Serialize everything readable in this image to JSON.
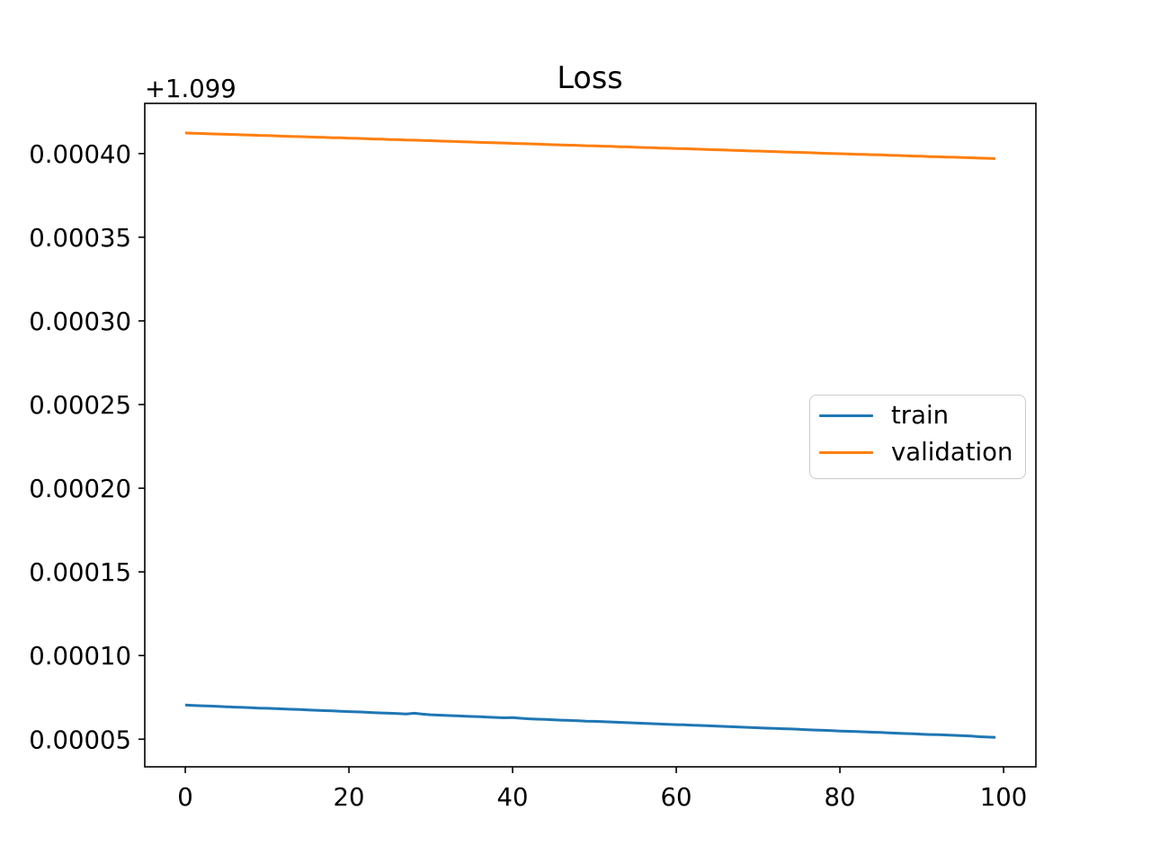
{
  "figure": {
    "background_color": "#ffffff",
    "kind": "matplotlib line figure"
  },
  "chart_data": {
    "type": "line",
    "title": "Loss",
    "xlabel": "",
    "ylabel": "",
    "y_axis_offset_label": "+1.099",
    "note": "y tick values are relative to the +1.099 axis offset shown above the y-axis",
    "grid": false,
    "xlim": [
      -4.95,
      103.95
    ],
    "ylim": [
      3.35e-05,
      0.00043
    ],
    "x_ticks": {
      "values": [
        0,
        20,
        40,
        60,
        80,
        100
      ],
      "labels": [
        "0",
        "20",
        "40",
        "60",
        "80",
        "100"
      ]
    },
    "y_ticks": {
      "values": [
        5e-05,
        0.0001,
        0.00015,
        0.0002,
        0.00025,
        0.0003,
        0.00035,
        0.0004
      ],
      "labels": [
        "0.00005",
        "0.00010",
        "0.00015",
        "0.00020",
        "0.00025",
        "0.00030",
        "0.00035",
        "0.00040"
      ]
    },
    "legend": {
      "position": "center-right",
      "entries": [
        "train",
        "validation"
      ]
    },
    "x": [
      0,
      1,
      2,
      3,
      4,
      5,
      6,
      7,
      8,
      9,
      10,
      11,
      12,
      13,
      14,
      15,
      16,
      17,
      18,
      19,
      20,
      21,
      22,
      23,
      24,
      25,
      26,
      27,
      28,
      29,
      30,
      31,
      32,
      33,
      34,
      35,
      36,
      37,
      38,
      39,
      40,
      41,
      42,
      43,
      44,
      45,
      46,
      47,
      48,
      49,
      50,
      51,
      52,
      53,
      54,
      55,
      56,
      57,
      58,
      59,
      60,
      61,
      62,
      63,
      64,
      65,
      66,
      67,
      68,
      69,
      70,
      71,
      72,
      73,
      74,
      75,
      76,
      77,
      78,
      79,
      80,
      81,
      82,
      83,
      84,
      85,
      86,
      87,
      88,
      89,
      90,
      91,
      92,
      93,
      94,
      95,
      96,
      97,
      98,
      99
    ],
    "series": [
      {
        "name": "train",
        "color": "#1f77b4",
        "values": [
          7.04e-05,
          7.02e-05,
          7e-05,
          6.98e-05,
          6.96e-05,
          6.94e-05,
          6.92e-05,
          6.9e-05,
          6.88e-05,
          6.86e-05,
          6.85e-05,
          6.83e-05,
          6.81e-05,
          6.79e-05,
          6.77e-05,
          6.75e-05,
          6.73e-05,
          6.71e-05,
          6.69e-05,
          6.67e-05,
          6.65e-05,
          6.63e-05,
          6.61e-05,
          6.59e-05,
          6.57e-05,
          6.55e-05,
          6.53e-05,
          6.51e-05,
          6.55e-05,
          6.5e-05,
          6.46e-05,
          6.44e-05,
          6.42e-05,
          6.4e-05,
          6.38e-05,
          6.36e-05,
          6.34e-05,
          6.32e-05,
          6.3e-05,
          6.28e-05,
          6.29e-05,
          6.25e-05,
          6.22e-05,
          6.2e-05,
          6.18e-05,
          6.16e-05,
          6.14e-05,
          6.12e-05,
          6.1e-05,
          6.08e-05,
          6.07e-05,
          6.05e-05,
          6.03e-05,
          6.01e-05,
          5.99e-05,
          5.97e-05,
          5.95e-05,
          5.93e-05,
          5.91e-05,
          5.89e-05,
          5.87e-05,
          5.86e-05,
          5.84e-05,
          5.82e-05,
          5.8e-05,
          5.78e-05,
          5.76e-05,
          5.74e-05,
          5.72e-05,
          5.7e-05,
          5.68e-05,
          5.66e-05,
          5.65e-05,
          5.63e-05,
          5.61e-05,
          5.59e-05,
          5.57e-05,
          5.55e-05,
          5.53e-05,
          5.51e-05,
          5.49e-05,
          5.47e-05,
          5.46e-05,
          5.44e-05,
          5.42e-05,
          5.4e-05,
          5.38e-05,
          5.36e-05,
          5.34e-05,
          5.32e-05,
          5.3e-05,
          5.28e-05,
          5.27e-05,
          5.25e-05,
          5.23e-05,
          5.21e-05,
          5.19e-05,
          5.15e-05,
          5.13e-05,
          5.11e-05
        ]
      },
      {
        "name": "validation",
        "color": "#ff7f0e",
        "values": [
          0.0004123,
          0.0004121,
          0.000412,
          0.0004118,
          0.0004117,
          0.0004115,
          0.0004114,
          0.0004112,
          0.0004111,
          0.0004109,
          0.0004108,
          0.0004106,
          0.0004104,
          0.0004103,
          0.0004101,
          0.00041,
          0.0004098,
          0.0004097,
          0.0004095,
          0.0004094,
          0.0004092,
          0.0004091,
          0.0004089,
          0.0004087,
          0.0004086,
          0.0004084,
          0.0004083,
          0.0004081,
          0.000408,
          0.0004078,
          0.0004077,
          0.0004075,
          0.0004074,
          0.0004072,
          0.000407,
          0.0004069,
          0.0004067,
          0.0004066,
          0.0004064,
          0.0004063,
          0.0004061,
          0.000406,
          0.0004058,
          0.0004057,
          0.0004055,
          0.0004053,
          0.0004052,
          0.000405,
          0.0004049,
          0.0004047,
          0.0004046,
          0.0004044,
          0.0004043,
          0.0004041,
          0.000404,
          0.0004038,
          0.0004036,
          0.0004035,
          0.0004033,
          0.0004032,
          0.000403,
          0.0004029,
          0.0004027,
          0.0004026,
          0.0004024,
          0.0004023,
          0.0004021,
          0.0004019,
          0.0004018,
          0.0004016,
          0.0004015,
          0.0004013,
          0.0004012,
          0.000401,
          0.0004009,
          0.0004007,
          0.0004006,
          0.0004004,
          0.0004002,
          0.0004001,
          0.0003999,
          0.0003998,
          0.0003996,
          0.0003995,
          0.0003993,
          0.0003992,
          0.000399,
          0.0003989,
          0.0003987,
          0.0003985,
          0.0003984,
          0.0003982,
          0.0003981,
          0.0003979,
          0.0003978,
          0.0003976,
          0.0003975,
          0.0003973,
          0.0003972,
          0.000397
        ]
      }
    ]
  }
}
